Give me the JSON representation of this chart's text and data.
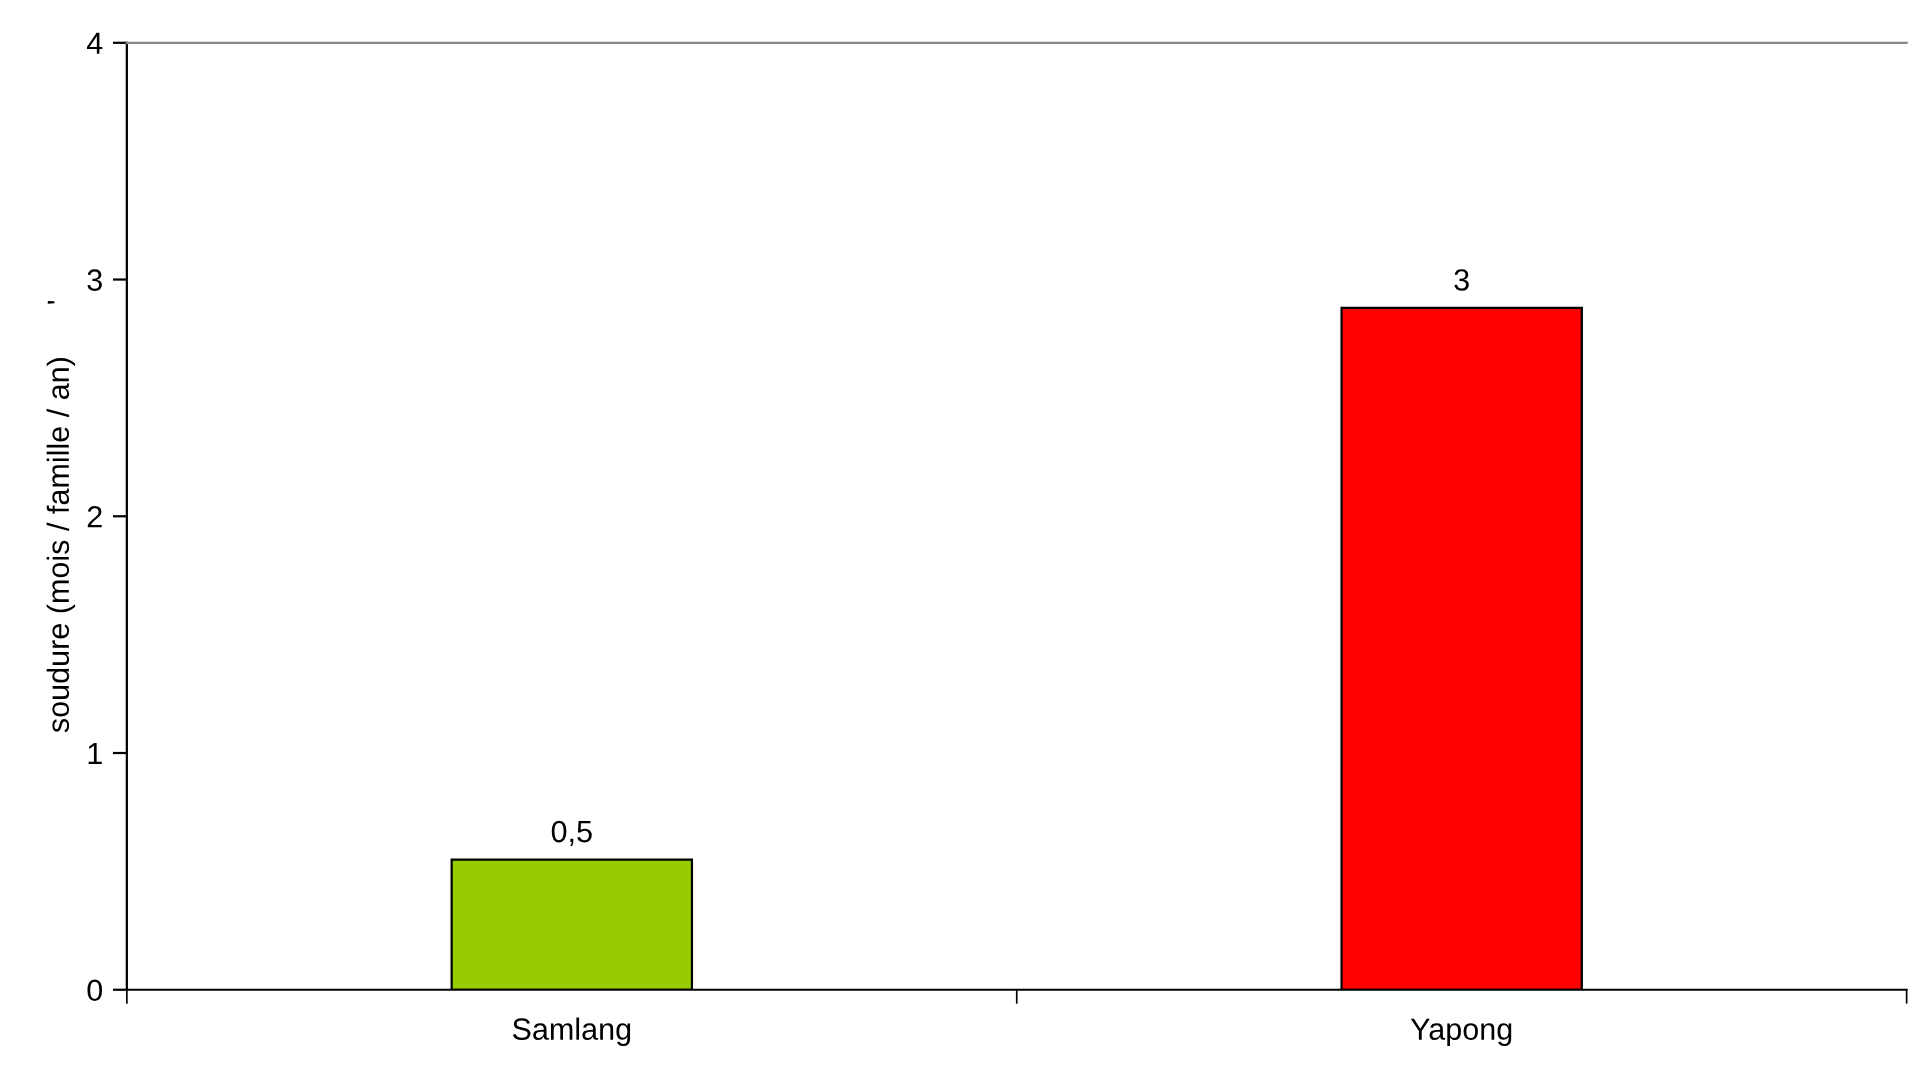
{
  "chart_data": {
    "type": "bar",
    "ylabel": "soudure (mois / famille / an)      '",
    "categories": [
      "Samlang",
      "Yapong"
    ],
    "values": [
      0.55,
      2.88
    ],
    "colors": [
      "#99cc00",
      "#ff0000"
    ],
    "value_labels": [
      "0,5",
      "3"
    ],
    "ylim": [
      0,
      4
    ],
    "yticks": [
      0,
      1,
      2,
      3,
      4
    ]
  }
}
